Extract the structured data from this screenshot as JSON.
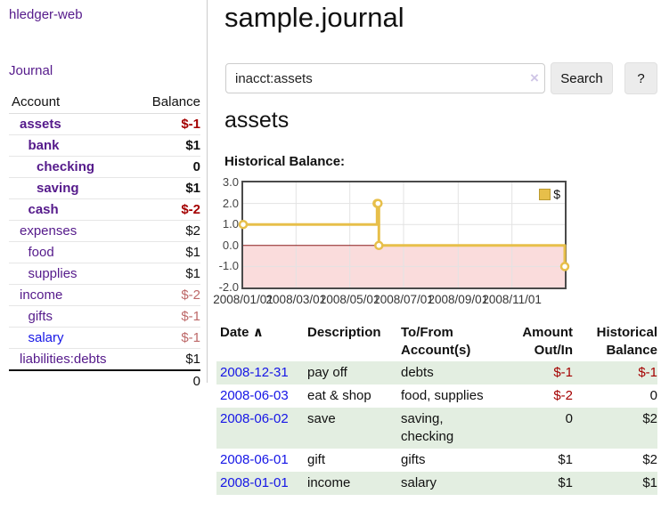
{
  "app": {
    "title": "hledger-web",
    "nav_journal": "Journal"
  },
  "colors": {
    "link_purple": "#551a8b",
    "link_blue": "#1515e6",
    "negative_strong": "#a40000",
    "negative_muted": "#bd6868",
    "row_stripe_green": "#e3eee1",
    "chart_line_gold": "#e7bf4a",
    "chart_negative_region_pink": "#fadcdc",
    "chart_zero_line_red": "#8b1a1a"
  },
  "sidebar": {
    "header": {
      "account": "Account",
      "balance": "Balance"
    },
    "accounts": [
      {
        "name": "assets",
        "balance": "$-1",
        "indent": 1,
        "bold": true,
        "neg": "strong"
      },
      {
        "name": "bank",
        "balance": "$1",
        "indent": 2,
        "bold": true
      },
      {
        "name": "checking",
        "balance": "0",
        "indent": 3,
        "bold": true
      },
      {
        "name": "saving",
        "balance": "$1",
        "indent": 3,
        "bold": true
      },
      {
        "name": "cash",
        "balance": "$-2",
        "indent": 2,
        "bold": true,
        "neg": "strong"
      },
      {
        "name": "expenses",
        "balance": "$2",
        "indent": 1
      },
      {
        "name": "food",
        "balance": "$1",
        "indent": 2
      },
      {
        "name": "supplies",
        "balance": "$1",
        "indent": 2
      },
      {
        "name": "income",
        "balance": "$-2",
        "indent": 1,
        "neg": "muted"
      },
      {
        "name": "gifts",
        "balance": "$-1",
        "indent": 2,
        "neg": "muted"
      },
      {
        "name": "salary",
        "balance": "$-1",
        "indent": 2,
        "neg": "muted",
        "link_color": "blue"
      },
      {
        "name": "liabilities:debts",
        "balance": "$1",
        "indent": 1
      }
    ],
    "total": "0"
  },
  "header": {
    "title": "sample.journal"
  },
  "search": {
    "value": "inacct:assets",
    "clear_icon": "×",
    "button": "Search",
    "help_button": "?"
  },
  "account_page": {
    "heading": "assets",
    "chart_label": "Historical Balance:"
  },
  "chart_data": {
    "type": "line",
    "step": true,
    "title": "Historical Balance",
    "series": [
      {
        "name": "$",
        "color": "#e7bf4a",
        "points": [
          [
            "2008-01-01",
            1
          ],
          [
            "2008-06-01",
            2
          ],
          [
            "2008-06-02",
            2
          ],
          [
            "2008-06-03",
            0
          ],
          [
            "2008-12-31",
            -1
          ]
        ]
      }
    ],
    "xlim": [
      "2008-01-01",
      "2008-12-31"
    ],
    "ylim": [
      -2,
      3
    ],
    "x_ticks": [
      "2008/01/01",
      "2008/03/01",
      "2008/05/01",
      "2008/07/01",
      "2008/09/01",
      "2008/11/01"
    ],
    "y_ticks": [
      "3.0",
      "2.0",
      "1.0",
      "0.0",
      "-1.0",
      "-2.0"
    ],
    "grid": true,
    "legend": [
      "$"
    ],
    "legend_position": "top-right"
  },
  "register": {
    "columns": [
      "Date",
      "Description",
      "To/From Account(s)",
      "Amount Out/In",
      "Historical Balance"
    ],
    "sort_icon": "∧",
    "rows": [
      {
        "date": "2008-12-31",
        "description": "pay off",
        "accounts": [
          "debts"
        ],
        "amount": "$-1",
        "balance": "$-1",
        "amount_neg": true,
        "balance_neg": true
      },
      {
        "date": "2008-06-03",
        "description": "eat & shop",
        "accounts": [
          "food, supplies"
        ],
        "amount": "$-2",
        "balance": "0",
        "amount_neg": true
      },
      {
        "date": "2008-06-02",
        "description": "save",
        "accounts": [
          "saving,",
          "checking"
        ],
        "amount": "0",
        "balance": "$2"
      },
      {
        "date": "2008-06-01",
        "description": "gift",
        "accounts": [
          "gifts"
        ],
        "amount": "$1",
        "balance": "$2"
      },
      {
        "date": "2008-01-01",
        "description": "income",
        "accounts": [
          "salary"
        ],
        "amount": "$1",
        "balance": "$1"
      }
    ]
  }
}
